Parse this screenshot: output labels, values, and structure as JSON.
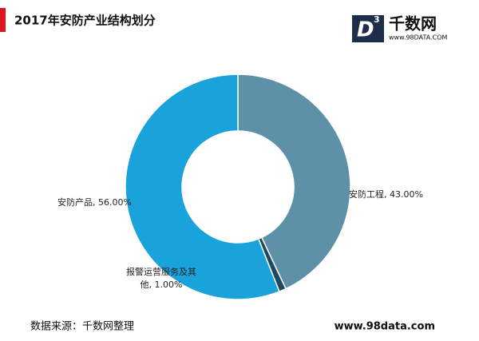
{
  "header": {
    "title": "2017年安防产业结构划分"
  },
  "logo": {
    "mark": "D",
    "mark_sup": "3",
    "name": "千数网",
    "url": "www.98DATA.COM"
  },
  "chart_data": {
    "type": "donut",
    "categories": [
      "安防工程",
      "报警运营服务及其他",
      "安防产品"
    ],
    "values": [
      43,
      1,
      56
    ],
    "value_labels": [
      "43.00%",
      "1.00%",
      "56.00%"
    ],
    "label_separator": ", ",
    "colors": [
      "#5e90a8",
      "#1d4a5e",
      "#1aa3db"
    ]
  },
  "footer": {
    "source": "数据来源：千数网整理",
    "site": "www.98data.com"
  }
}
